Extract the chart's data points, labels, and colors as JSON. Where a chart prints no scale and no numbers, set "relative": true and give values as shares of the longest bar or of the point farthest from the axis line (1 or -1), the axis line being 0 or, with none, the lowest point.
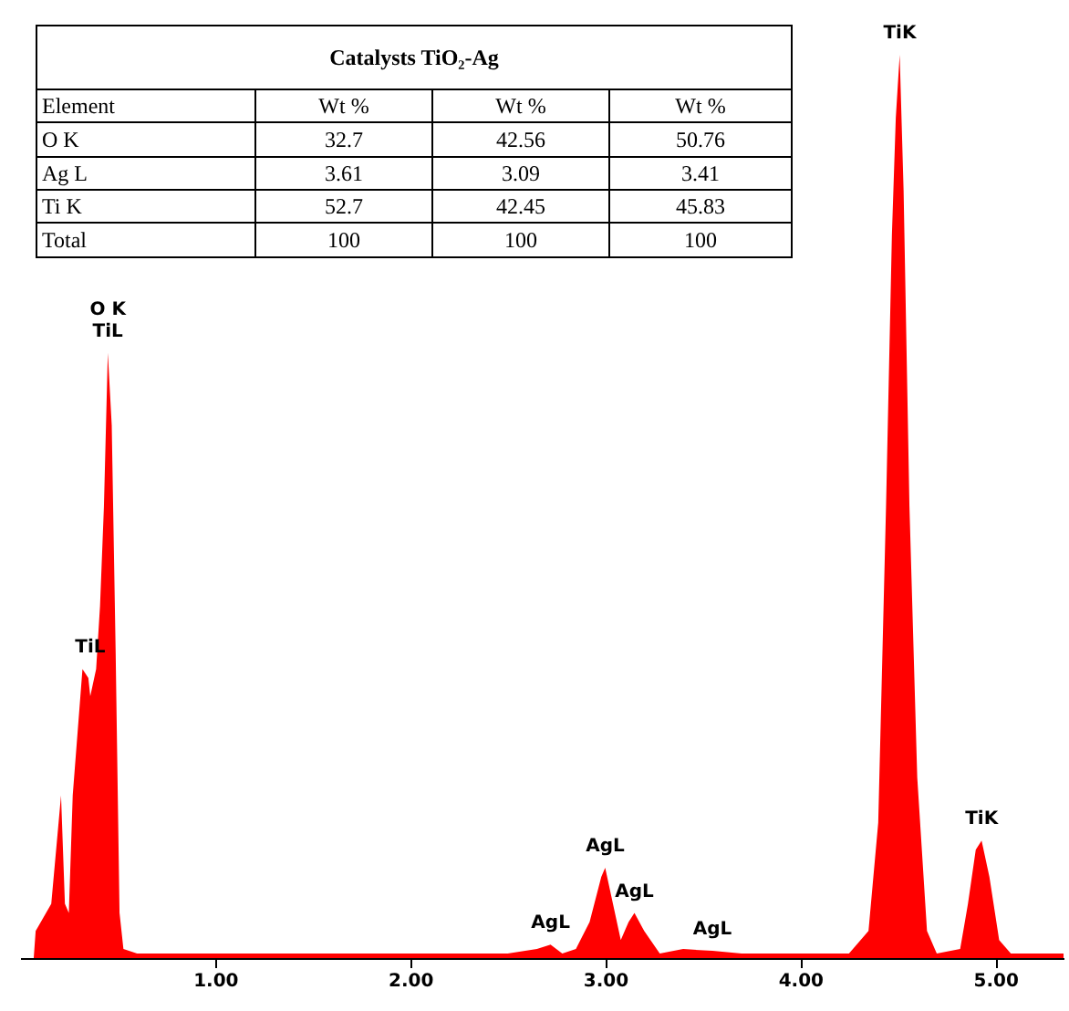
{
  "chart_data": {
    "type": "area",
    "relative": true,
    "title": "Catalysts TiO₂-Ag",
    "x": [
      0.07,
      0.08,
      0.16,
      0.21,
      0.23,
      0.25,
      0.27,
      0.32,
      0.35,
      0.36,
      0.39,
      0.41,
      0.43,
      0.45,
      0.47,
      0.49,
      0.51,
      0.53,
      0.6,
      1.0,
      1.5,
      2.0,
      2.5,
      2.65,
      2.72,
      2.78,
      2.85,
      2.92,
      2.98,
      3.0,
      3.03,
      3.08,
      3.12,
      3.15,
      3.2,
      3.28,
      3.4,
      3.55,
      3.7,
      4.0,
      4.25,
      4.35,
      4.4,
      4.44,
      4.47,
      4.49,
      4.51,
      4.53,
      4.56,
      4.6,
      4.65,
      4.7,
      4.82,
      4.86,
      4.9,
      4.93,
      4.97,
      5.02,
      5.08,
      5.35
    ],
    "series": [
      {
        "color": "#ff0000",
        "values": [
          0,
          0.03,
          0.06,
          0.18,
          0.06,
          0.05,
          0.18,
          0.32,
          0.31,
          0.29,
          0.32,
          0.39,
          0.5,
          0.67,
          0.59,
          0.34,
          0.05,
          0.01,
          0.005,
          0.005,
          0.005,
          0.005,
          0.005,
          0.01,
          0.015,
          0.005,
          0.01,
          0.04,
          0.09,
          0.1,
          0.07,
          0.02,
          0.04,
          0.05,
          0.03,
          0.005,
          0.01,
          0.008,
          0.005,
          0.005,
          0.005,
          0.03,
          0.15,
          0.5,
          0.8,
          0.93,
          1.0,
          0.85,
          0.5,
          0.2,
          0.03,
          0.005,
          0.01,
          0.06,
          0.12,
          0.13,
          0.09,
          0.02,
          0.005,
          0.005
        ]
      }
    ],
    "xlim": [
      0,
      5.35
    ],
    "xticks": [
      {
        "value": 1,
        "label": "1.00"
      },
      {
        "value": 2,
        "label": "2.00"
      },
      {
        "value": 3,
        "label": "3.00"
      },
      {
        "value": 4,
        "label": "4.00"
      },
      {
        "value": 5,
        "label": "5.00"
      }
    ],
    "tick_labels": "x",
    "grid": false,
    "annotations": [
      {
        "text": "O K",
        "x": 0.45,
        "y": 0.67
      },
      {
        "text": "TiL",
        "x": 0.45,
        "y": 0.67
      },
      {
        "text": "TiL",
        "x": 0.36,
        "y": 0.32
      },
      {
        "text": "AgL",
        "x": 2.72,
        "y": 0.015
      },
      {
        "text": "AgL",
        "x": 3.0,
        "y": 0.1
      },
      {
        "text": "AgL",
        "x": 3.15,
        "y": 0.05
      },
      {
        "text": "AgL",
        "x": 3.55,
        "y": 0.008
      },
      {
        "text": "TiK",
        "x": 4.51,
        "y": 1.0
      },
      {
        "text": "TiK",
        "x": 4.93,
        "y": 0.13
      },
      "Element",
      "Wt %",
      "Wt %",
      "Wt %",
      "O K",
      "32.7",
      "42.56",
      "50.76",
      "Ag L",
      "3.61",
      "3.09",
      "3.41",
      "Ti K",
      "52.7",
      "42.45",
      "45.83",
      "Total",
      "100",
      "100",
      "100"
    ]
  }
}
